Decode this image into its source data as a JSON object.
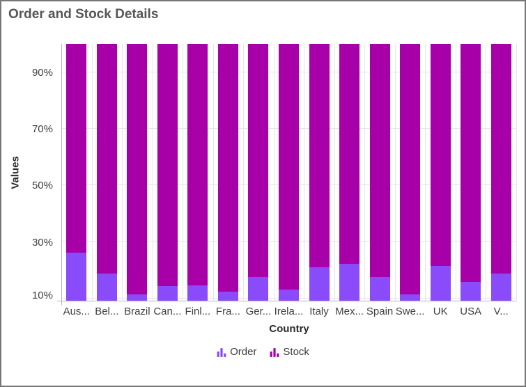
{
  "frame": {
    "border_color": "#777777",
    "background": "#ffffff"
  },
  "title": {
    "text": "Order and Stock Details",
    "color": "#565656"
  },
  "y_axis": {
    "title": "Values",
    "tick_labels": [
      "90%",
      "70%",
      "50%",
      "30%",
      "10%"
    ],
    "tick_values": [
      90,
      70,
      50,
      30,
      10
    ]
  },
  "x_axis": {
    "title": "Country",
    "category_labels": [
      "Aus...",
      "Bel...",
      "Brazil",
      "Can...",
      "Finl...",
      "Fra...",
      "Ger...",
      "Irela...",
      "Italy",
      "Mex...",
      "Spain",
      "Swe...",
      "UK",
      "USA",
      "V..."
    ]
  },
  "legend": {
    "items": [
      {
        "label": "Order",
        "color": "#8a4cfa",
        "icon": "mini-column-chart-icon"
      },
      {
        "label": "Stock",
        "color": "#a800a8",
        "icon": "mini-column-chart-icon"
      }
    ]
  },
  "colors": {
    "order": "#8a4cfa",
    "stock": "#a800a8",
    "gridline": "#e6e6e6",
    "axis_line": "#b6b6b6",
    "label": "#3f3f3f"
  },
  "chart_data": {
    "type": "bar",
    "subtype": "stacked-100-percent-column",
    "title": "Order and Stock Details",
    "xlabel": "Country",
    "ylabel": "Values",
    "categories": [
      "Aus...",
      "Bel...",
      "Brazil",
      "Can...",
      "Finl...",
      "Fra...",
      "Ger...",
      "Irela...",
      "Italy",
      "Mex...",
      "Spain",
      "Swe...",
      "UK",
      "USA",
      "V..."
    ],
    "series": [
      {
        "name": "Order",
        "color": "#8a4cfa",
        "values_pct": [
          26.2,
          18.9,
          11.3,
          14.3,
          14.5,
          12.3,
          17.5,
          13.1,
          21.1,
          22.3,
          17.6,
          11.5,
          21.5,
          15.8,
          18.8
        ]
      },
      {
        "name": "Stock",
        "color": "#a800a8",
        "values_pct": [
          73.8,
          81.1,
          88.7,
          85.7,
          85.5,
          87.7,
          82.5,
          86.9,
          78.9,
          77.7,
          82.4,
          88.5,
          78.5,
          84.2,
          81.2
        ]
      }
    ],
    "y_ticks_pct": [
      10,
      30,
      50,
      70,
      90
    ],
    "y_visible_range_pct": [
      9.2,
      100
    ],
    "grid": true,
    "legend_position": "bottom"
  }
}
